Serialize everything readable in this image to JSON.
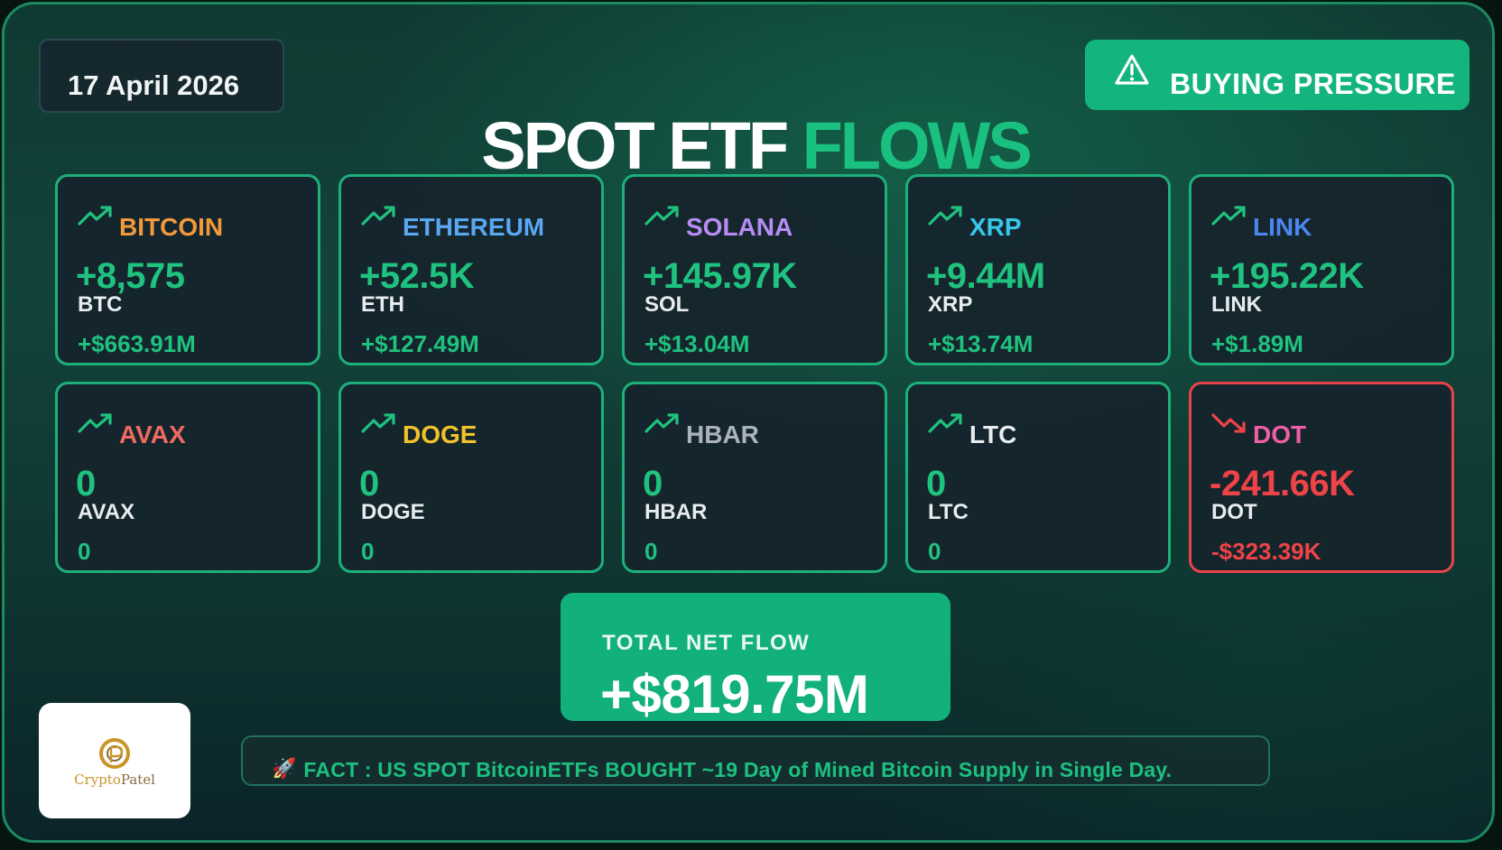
{
  "date": "17 April 2026",
  "status_badge": {
    "label": "BUYING PRESSURE",
    "icon": "warning-triangle-icon"
  },
  "title": {
    "part1": "SPOT ETF",
    "part2": "FLOWS"
  },
  "colors": {
    "positive": "#1fc27f",
    "negative": "#ee4347",
    "accent": "#14b57c"
  },
  "cards": [
    {
      "name": "BITCOIN",
      "amount": "+8,575",
      "unit": "BTC",
      "usd": "+$663.91M",
      "trend": "up",
      "name_color": "#f29a3a"
    },
    {
      "name": "ETHEREUM",
      "amount": "+52.5K",
      "unit": "ETH",
      "usd": "+$127.49M",
      "trend": "up",
      "name_color": "#5aa7f2"
    },
    {
      "name": "SOLANA",
      "amount": "+145.97K",
      "unit": "SOL",
      "usd": "+$13.04M",
      "trend": "up",
      "name_color": "#b78cf5"
    },
    {
      "name": "XRP",
      "amount": "+9.44M",
      "unit": "XRP",
      "usd": "+$13.74M",
      "trend": "up",
      "name_color": "#37c7ea"
    },
    {
      "name": "LINK",
      "amount": "+195.22K",
      "unit": "LINK",
      "usd": "+$1.89M",
      "trend": "up",
      "name_color": "#4c86f0"
    },
    {
      "name": "AVAX",
      "amount": "0",
      "unit": "AVAX",
      "usd": "0",
      "trend": "up",
      "name_color": "#f06a62"
    },
    {
      "name": "DOGE",
      "amount": "0",
      "unit": "DOGE",
      "usd": "0",
      "trend": "up",
      "name_color": "#f2c22a"
    },
    {
      "name": "HBAR",
      "amount": "0",
      "unit": "HBAR",
      "usd": "0",
      "trend": "up",
      "name_color": "#aab3bd"
    },
    {
      "name": "LTC",
      "amount": "0",
      "unit": "LTC",
      "usd": "0",
      "trend": "up",
      "name_color": "#e8ecef"
    },
    {
      "name": "DOT",
      "amount": "-241.66K",
      "unit": "DOT",
      "usd": "-$323.39K",
      "trend": "down",
      "name_color": "#ef5fa5"
    }
  ],
  "total": {
    "label": "TOTAL NET FLOW",
    "value": "+$819.75M"
  },
  "fact": {
    "icon": "rocket-icon",
    "text": "FACT : US SPOT  BitcoinETFs  BOUGHT  ~19 Day of Mined Bitcoin Supply in Single Day."
  },
  "logo": {
    "part1": "Crypto",
    "part2": "Patel"
  }
}
